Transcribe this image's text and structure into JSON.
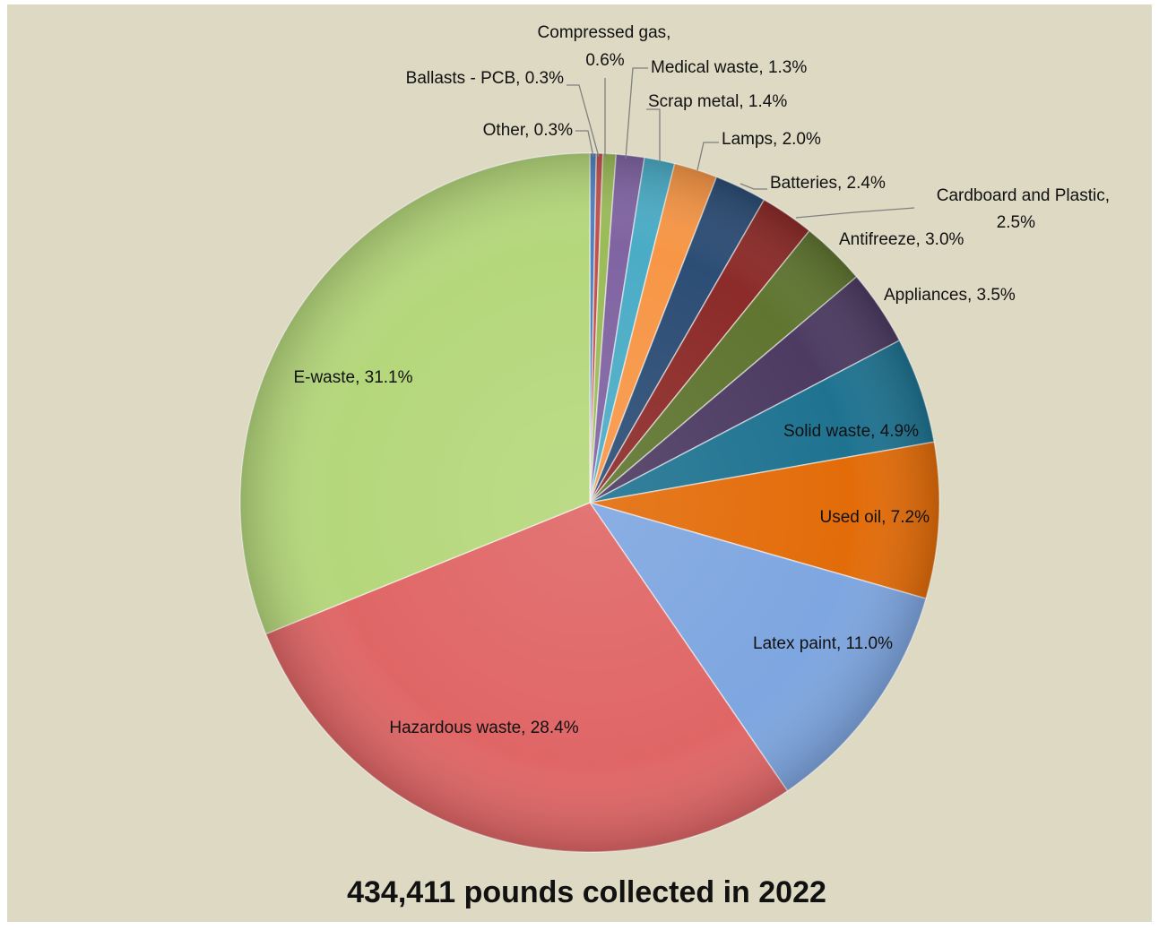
{
  "chart_data": {
    "type": "pie",
    "title": "434,411 pounds collected in 2022",
    "slices": [
      {
        "name": "Other",
        "value": 0.3,
        "label": "Other, 0.3%",
        "color": "#4f81bd"
      },
      {
        "name": "Ballasts - PCB",
        "value": 0.3,
        "label": "Ballasts - PCB, 0.3%",
        "color": "#c0504d"
      },
      {
        "name": "Compressed gas",
        "value": 0.6,
        "label": "Compressed gas, 0.6%",
        "color": "#9bbb59"
      },
      {
        "name": "Medical waste",
        "value": 1.3,
        "label": "Medical waste, 1.3%",
        "color": "#8064a2"
      },
      {
        "name": "Scrap metal",
        "value": 1.4,
        "label": "Scrap metal, 1.4%",
        "color": "#4bacc6"
      },
      {
        "name": "Lamps",
        "value": 2.0,
        "label": "Lamps, 2.0%",
        "color": "#f79646"
      },
      {
        "name": "Batteries",
        "value": 2.4,
        "label": "Batteries, 2.4%",
        "color": "#2c4d75"
      },
      {
        "name": "Cardboard and Plastic",
        "value": 2.5,
        "label": "Cardboard and Plastic, 2.5%",
        "color": "#8c2b29"
      },
      {
        "name": "Antifreeze",
        "value": 3.0,
        "label": "Antifreeze, 3.0%",
        "color": "#5f7530"
      },
      {
        "name": "Appliances",
        "value": 3.5,
        "label": "Appliances, 3.5%",
        "color": "#4d3b62"
      },
      {
        "name": "Solid waste",
        "value": 4.9,
        "label": "Solid waste, 4.9%",
        "color": "#1f7391"
      },
      {
        "name": "Used oil",
        "value": 7.2,
        "label": "Used oil, 7.2%",
        "color": "#e36c09"
      },
      {
        "name": "Latex paint",
        "value": 11.0,
        "label": "Latex paint, 11.0%",
        "color": "#7ea6e0"
      },
      {
        "name": "Hazardous waste",
        "value": 28.4,
        "label": "Hazardous waste, 28.4%",
        "color": "#e06666"
      },
      {
        "name": "E-waste",
        "value": 31.1,
        "label": "E-waste, 31.1%",
        "color": "#b5d77b"
      }
    ],
    "label_lines": [
      [
        "Other, 0.3%"
      ],
      [
        "Ballasts - PCB, 0.3%"
      ],
      [
        "Compressed gas,",
        "0.6%"
      ],
      [
        "Medical waste, 1.3%"
      ],
      [
        "Scrap metal, 1.4%"
      ],
      [
        "Lamps, 2.0%"
      ],
      [
        "Batteries, 2.4%"
      ],
      [
        "Cardboard and Plastic,",
        "2.5%"
      ],
      [
        "Antifreeze, 3.0%"
      ],
      [
        "Appliances, 3.5%"
      ],
      [
        "Solid waste, 4.9%"
      ],
      [
        "Used oil, 7.2%"
      ],
      [
        "Latex paint, 11.0%"
      ],
      [
        "Hazardous waste, 28.4%"
      ],
      [
        "E-waste, 31.1%"
      ]
    ],
    "start": "12 o'clock",
    "direction": "clockwise",
    "legend": "none"
  },
  "background_color": "#ddd9c3"
}
